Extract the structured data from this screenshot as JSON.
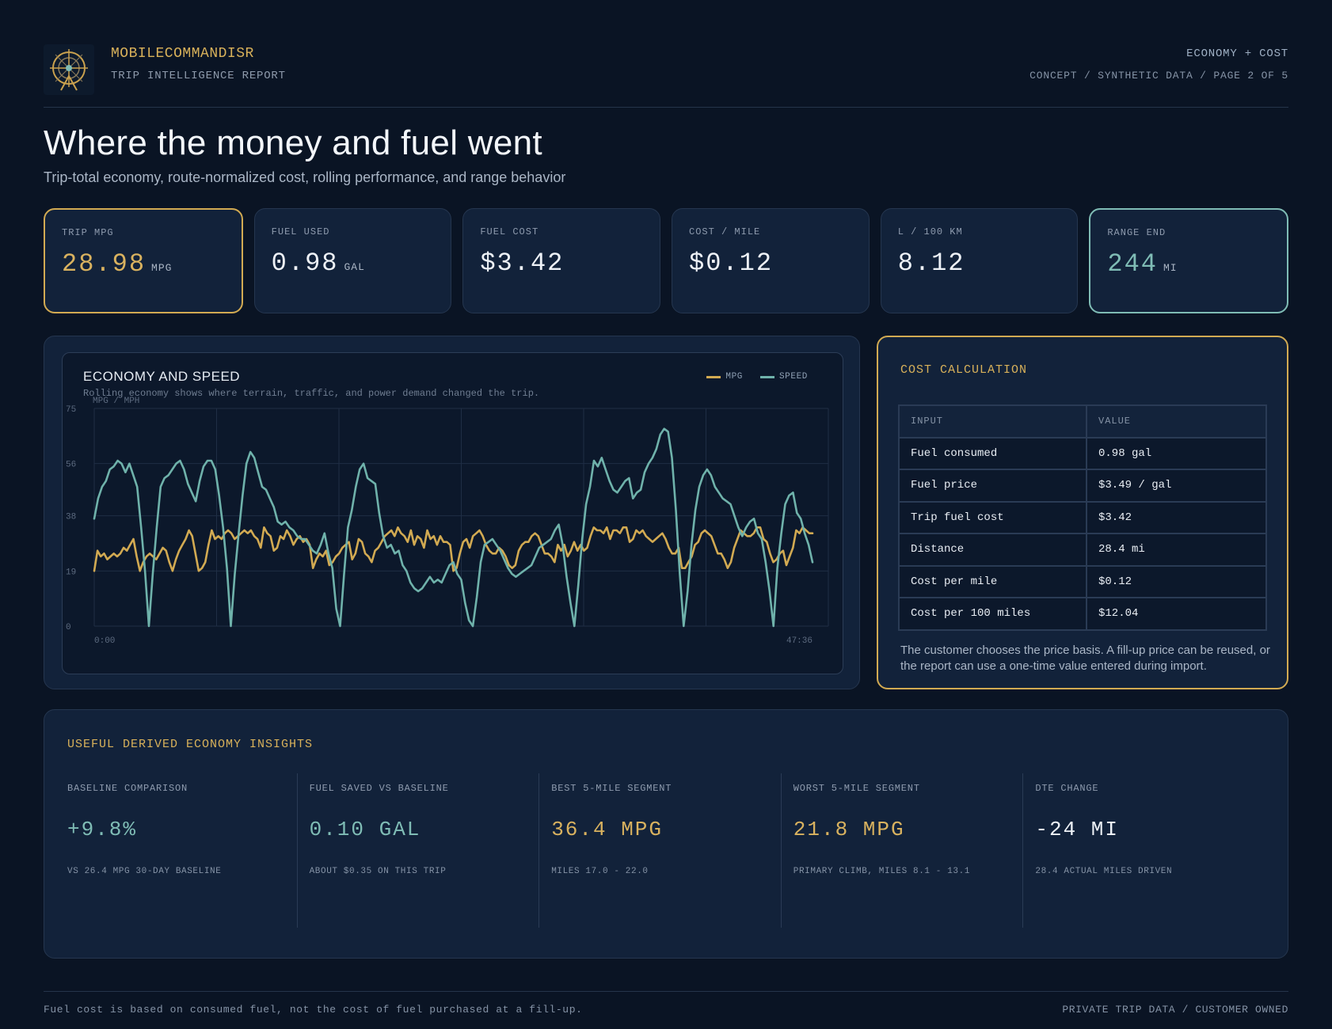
{
  "header": {
    "brand": "MOBILECOMMANDISR",
    "report": "TRIP INTELLIGENCE REPORT",
    "section": "ECONOMY + COST",
    "meta": "CONCEPT / SYNTHETIC DATA / PAGE 2 OF 5"
  },
  "page": {
    "title": "Where the money and fuel went",
    "subtitle": "Trip-total economy, route-normalized cost, rolling performance, and range behavior"
  },
  "kpis": [
    {
      "label": "TRIP MPG",
      "value": "28.98",
      "unit": "MPG",
      "accent": "#d2aa52"
    },
    {
      "label": "FUEL USED",
      "value": "0.98",
      "unit": "GAL"
    },
    {
      "label": "FUEL COST",
      "value": "$3.42",
      "unit": ""
    },
    {
      "label": "COST / MILE",
      "value": "$0.12",
      "unit": ""
    },
    {
      "label": "L / 100 KM",
      "value": "8.12",
      "unit": ""
    },
    {
      "label": "RANGE END",
      "value": "244",
      "unit": "MI",
      "accent": "#7fbcb5"
    }
  ],
  "chart": {
    "title": "ECONOMY AND SPEED",
    "subtitle": "Rolling economy shows where terrain, traffic, and power demand changed the trip.",
    "ylabel": "MPG / MPH",
    "legend": {
      "mpg": "MPG",
      "speed": "SPEED"
    },
    "x_start": "0:00",
    "x_end": "47:36"
  },
  "chart_data": {
    "type": "line",
    "ylabel": "MPG / MPH",
    "ylim": [
      0,
      75
    ],
    "yticks": [
      "0",
      "19",
      "38",
      "56",
      "75"
    ],
    "xticks": [
      "0:00",
      "47:36"
    ],
    "grid": true,
    "legend_position": "top-right",
    "colors": {
      "mpg": "#d2aa52",
      "speed": "#6fb2ab"
    },
    "series": [
      {
        "name": "MPG",
        "values": [
          19,
          26,
          24,
          25,
          23,
          24,
          25,
          24,
          25,
          27,
          26,
          28,
          30,
          24,
          19,
          22,
          24,
          25,
          24,
          23,
          25,
          27,
          26,
          22,
          19,
          23,
          26,
          28,
          30,
          33,
          31,
          25,
          19,
          20,
          22,
          28,
          33,
          30,
          31,
          30,
          32,
          33,
          32,
          30,
          31,
          32,
          33,
          32,
          33,
          31,
          30,
          27,
          34,
          32,
          31,
          26,
          27,
          31,
          30,
          33,
          31,
          28,
          30,
          31,
          29,
          30,
          28,
          20,
          23,
          25,
          24,
          26,
          21,
          22,
          24,
          25,
          27,
          28,
          29,
          23,
          25,
          30,
          29,
          25,
          24,
          22,
          26,
          27,
          29,
          31,
          32,
          33,
          31,
          34,
          32,
          31,
          29,
          33,
          28,
          31,
          30,
          27,
          33,
          30,
          31,
          28,
          31,
          29,
          29,
          28,
          19,
          20,
          25,
          29,
          30,
          27,
          31,
          32,
          33,
          31,
          28,
          26,
          25,
          25,
          27,
          26,
          24,
          21,
          20,
          21,
          26,
          28,
          29,
          29,
          31,
          32,
          31,
          28,
          25,
          25,
          24,
          22,
          28,
          26,
          28,
          24,
          26,
          29,
          26,
          28,
          26,
          27,
          31,
          34,
          33,
          33,
          32,
          34,
          30,
          33,
          33,
          32,
          34,
          34,
          29,
          30,
          33,
          32,
          33,
          31,
          30,
          29,
          30,
          31,
          32,
          30,
          27,
          25,
          25,
          27,
          20,
          20,
          22,
          24,
          28,
          29,
          32,
          33,
          32,
          31,
          28,
          25,
          25,
          23,
          20,
          22,
          27,
          30,
          33,
          32,
          31,
          31,
          32,
          34,
          34,
          30,
          29,
          25,
          22,
          23,
          25,
          26,
          21,
          24,
          27,
          33,
          32,
          34,
          33,
          32,
          32
        ]
      },
      {
        "name": "SPEED",
        "values": [
          37,
          44,
          48,
          50,
          54,
          55,
          57,
          56,
          53,
          56,
          52,
          48,
          34,
          19,
          0,
          18,
          34,
          48,
          51,
          52,
          54,
          56,
          57,
          54,
          49,
          46,
          43,
          50,
          55,
          57,
          57,
          54,
          45,
          34,
          20,
          0,
          18,
          32,
          45,
          56,
          60,
          58,
          53,
          48,
          47,
          44,
          41,
          36,
          35,
          36,
          34,
          33,
          31,
          30,
          30,
          28,
          26,
          25,
          28,
          32,
          25,
          20,
          6,
          0,
          18,
          34,
          40,
          48,
          54,
          56,
          51,
          50,
          49,
          39,
          31,
          27,
          28,
          25,
          26,
          21,
          19,
          15,
          13,
          12,
          13,
          15,
          17,
          15,
          16,
          15,
          18,
          21,
          22,
          18,
          16,
          8,
          2,
          0,
          10,
          22,
          28,
          29,
          30,
          28,
          26,
          23,
          20,
          18,
          17,
          18,
          19,
          20,
          21,
          24,
          27,
          28,
          29,
          30,
          33,
          35,
          28,
          17,
          8,
          0,
          14,
          30,
          42,
          48,
          57,
          55,
          58,
          54,
          50,
          47,
          46,
          48,
          50,
          51,
          44,
          46,
          47,
          53,
          56,
          58,
          61,
          66,
          68,
          67,
          58,
          40,
          18,
          0,
          12,
          28,
          40,
          48,
          52,
          54,
          52,
          48,
          46,
          44,
          43,
          42,
          38,
          34,
          31,
          34,
          36,
          37,
          32,
          30,
          22,
          12,
          0,
          20,
          32,
          42,
          45,
          46,
          39,
          37,
          32,
          28,
          22
        ]
      }
    ]
  },
  "cost": {
    "title": "COST CALCULATION",
    "headers": [
      "INPUT",
      "VALUE"
    ],
    "rows": [
      [
        "Fuel consumed",
        "0.98 gal"
      ],
      [
        "Fuel price",
        "$3.49 / gal"
      ],
      [
        "Trip fuel cost",
        "$3.42"
      ],
      [
        "Distance",
        "28.4 mi"
      ],
      [
        "Cost per mile",
        "$0.12"
      ],
      [
        "Cost per 100 miles",
        "$12.04"
      ]
    ],
    "note": "The customer chooses the price basis. A fill-up price can be reused, or the report can use a one-time value entered during import."
  },
  "insights": {
    "title": "USEFUL DERIVED ECONOMY INSIGHTS",
    "items": [
      {
        "label": "BASELINE COMPARISON",
        "value": "+9.8%",
        "note": "VS 26.4 MPG 30-DAY BASELINE",
        "color": "#7fbcb5"
      },
      {
        "label": "FUEL SAVED VS BASELINE",
        "value": "0.10 GAL",
        "note": "ABOUT $0.35 ON THIS TRIP",
        "color": "#7fbcb5"
      },
      {
        "label": "BEST 5-MILE SEGMENT",
        "value": "36.4 MPG",
        "note": "MILES 17.0 - 22.0",
        "color": "#d9b25f"
      },
      {
        "label": "WORST 5-MILE SEGMENT",
        "value": "21.8 MPG",
        "note": "PRIMARY CLIMB, MILES 8.1 - 13.1",
        "color": "#d9b25f"
      },
      {
        "label": "DTE CHANGE",
        "value": "-24 MI",
        "note": "28.4 ACTUAL MILES DRIVEN",
        "color": "#eef2f7"
      }
    ]
  },
  "footer": {
    "left": "Fuel cost is based on consumed fuel, not the cost of fuel purchased at a fill-up.",
    "right": "PRIVATE TRIP DATA / CUSTOMER OWNED"
  }
}
